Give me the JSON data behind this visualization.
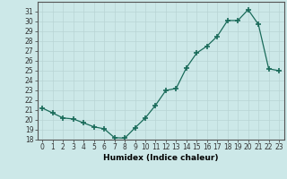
{
  "x": [
    0,
    1,
    2,
    3,
    4,
    5,
    6,
    7,
    8,
    9,
    10,
    11,
    12,
    13,
    14,
    15,
    16,
    17,
    18,
    19,
    20,
    21,
    22,
    23
  ],
  "y": [
    21.2,
    20.7,
    20.2,
    20.1,
    19.7,
    19.3,
    19.1,
    18.2,
    18.15,
    19.2,
    20.2,
    21.5,
    23.0,
    23.2,
    25.3,
    26.8,
    27.5,
    28.5,
    30.1,
    30.1,
    31.2,
    29.7,
    25.2,
    25.0
  ],
  "xlabel": "Humidex (Indice chaleur)",
  "ylim": [
    18,
    32
  ],
  "xlim": [
    -0.5,
    23.5
  ],
  "yticks": [
    18,
    19,
    20,
    21,
    22,
    23,
    24,
    25,
    26,
    27,
    28,
    29,
    30,
    31
  ],
  "xticks": [
    0,
    1,
    2,
    3,
    4,
    5,
    6,
    7,
    8,
    9,
    10,
    11,
    12,
    13,
    14,
    15,
    16,
    17,
    18,
    19,
    20,
    21,
    22,
    23
  ],
  "line_color": "#1a6b5a",
  "marker": "+",
  "bg_color": "#cce8e8",
  "grid_color": "#b8d4d4",
  "tick_fontsize": 5.5,
  "xlabel_fontsize": 6.5
}
